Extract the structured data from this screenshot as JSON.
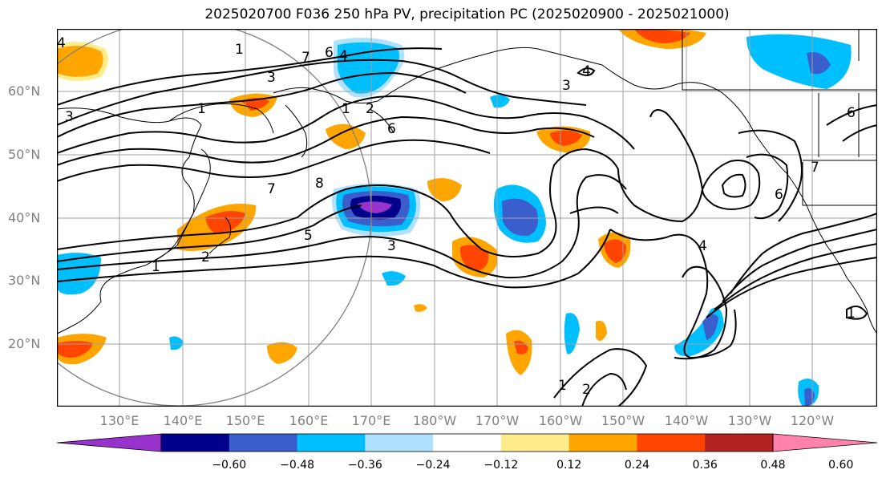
{
  "title": "2025020700 F036 250 hPa PV, precipitation PC (2025020900 - 2025021000)",
  "lat_labels": [
    "60°N",
    "50°N",
    "40°N",
    "30°N",
    "20°N"
  ],
  "lon_labels": [
    "130°E",
    "140°E",
    "150°E",
    "160°E",
    "170°E",
    "180°W",
    "170°W",
    "160°W",
    "150°W",
    "140°W",
    "130°W",
    "120°W"
  ],
  "contour_labels": [
    "1",
    "3",
    "4",
    "5",
    "6",
    "7",
    "8",
    "2"
  ],
  "colorbar": {
    "labels": [
      "−0.60",
      "−0.48",
      "−0.36",
      "−0.24",
      "−0.12",
      "0.12",
      "0.24",
      "0.36",
      "0.48",
      "0.60"
    ],
    "colors": [
      "#9932cc",
      "#00008b",
      "#3a5fcd",
      "#00bfff",
      "#b0e2ff",
      "#ffffff",
      "#ffec8b",
      "#ffa500",
      "#ff4500",
      "#b22222",
      "#ff82ab"
    ]
  },
  "colors": {
    "negative_fill": "#00bfff",
    "negative_strong": "#3a5fcd",
    "negative_max": "#00008b",
    "positive_fill": "#ffa500",
    "positive_strong": "#ff4500",
    "positive_light": "#ffec8b"
  }
}
